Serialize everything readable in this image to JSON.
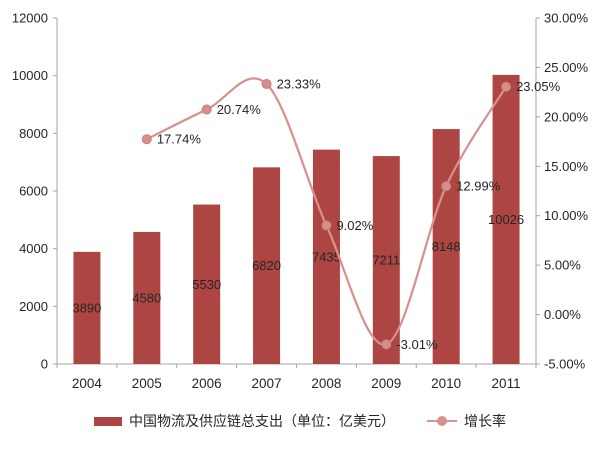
{
  "colors": {
    "bar": "#AD4543",
    "line": "#D7918E",
    "marker_fill": "#D68F8D",
    "marker_stroke": "#C67F7E",
    "axis_line": "#A6A6A6",
    "text": "#262626"
  },
  "legend": {
    "bar_label": "中国物流及供应链总支出（单位：亿美元）",
    "line_label": "增长率"
  },
  "chart_data": {
    "type": "bar",
    "title": "",
    "xlabel": "",
    "ylabel": "",
    "grid": false,
    "legend_position": "bottom",
    "categories": [
      "2004",
      "2005",
      "2006",
      "2007",
      "2008",
      "2009",
      "2010",
      "2011"
    ],
    "series": [
      {
        "name": "中国物流及供应链总支出（单位：亿美元）",
        "type": "bar",
        "axis": "left",
        "values": [
          3890,
          4580,
          5530,
          6820,
          7435,
          7211,
          8148,
          10026
        ],
        "labels": [
          "3890",
          "4580",
          "5530",
          "6820",
          "7435",
          "7211",
          "8148",
          "10026"
        ]
      },
      {
        "name": "增长率",
        "type": "line",
        "axis": "right",
        "values": [
          null,
          17.74,
          20.74,
          23.33,
          9.02,
          -3.01,
          12.99,
          23.05
        ],
        "labels": [
          null,
          "17.74%",
          "20.74%",
          "23.33%",
          "9.02%",
          "-3.01%",
          "12.99%",
          "23.05%"
        ]
      }
    ],
    "left_axis": {
      "min": 0,
      "max": 12000,
      "tick_labels": [
        "0",
        "2000",
        "4000",
        "6000",
        "8000",
        "10000",
        "12000"
      ]
    },
    "right_axis": {
      "min": -5,
      "max": 30,
      "tick_labels": [
        "-5.00%",
        "0.00%",
        "5.00%",
        "10.00%",
        "15.00%",
        "20.00%",
        "25.00%",
        "30.00%"
      ]
    }
  }
}
